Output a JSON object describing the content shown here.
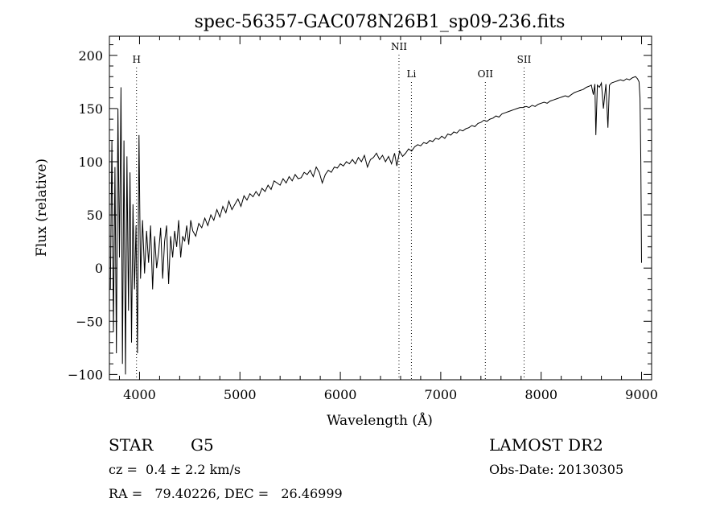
{
  "chart_data": {
    "type": "line",
    "title": "spec-56357-GAC078N26B1_sp09-236.fits",
    "xlabel": "Wavelength (Å)",
    "ylabel": "Flux (relative)",
    "xlim": [
      3700,
      9100
    ],
    "ylim": [
      -105,
      218
    ],
    "xticks": [
      4000,
      5000,
      6000,
      7000,
      8000,
      9000
    ],
    "yticks": [
      -100,
      -50,
      0,
      50,
      100,
      150,
      200
    ],
    "grid": false,
    "line_markers": [
      {
        "label": "H",
        "x": 3970,
        "level": 0
      },
      {
        "label": "NII",
        "x": 6584,
        "level": 1
      },
      {
        "label": "Li",
        "x": 6708,
        "level": 2
      },
      {
        "label": "OII",
        "x": 7444,
        "level": 2
      },
      {
        "label": "SII",
        "x": 7830,
        "level": 0
      }
    ],
    "series": [
      {
        "x": [
          3710,
          3725,
          3740,
          3755,
          3770,
          3785,
          3800,
          3815,
          3830,
          3845,
          3860,
          3875,
          3890,
          3905,
          3920,
          3935,
          3950,
          3965,
          3980,
          3995,
          4010,
          4030,
          4050,
          4070,
          4090,
          4110,
          4130,
          4150,
          4170,
          4190,
          4210,
          4230,
          4250,
          4270,
          4290,
          4310,
          4330,
          4350,
          4370,
          4390,
          4410,
          4430,
          4450,
          4470,
          4490,
          4510,
          4530,
          4560,
          4590,
          4620,
          4650,
          4680,
          4710,
          4740,
          4770,
          4800,
          4830,
          4860,
          4890,
          4920,
          4950,
          4980,
          5010,
          5040,
          5070,
          5100,
          5130,
          5160,
          5190,
          5220,
          5250,
          5280,
          5310,
          5340,
          5370,
          5400,
          5430,
          5460,
          5490,
          5520,
          5550,
          5580,
          5610,
          5640,
          5670,
          5700,
          5730,
          5760,
          5790,
          5820,
          5850,
          5880,
          5910,
          5940,
          5970,
          6000,
          6030,
          6060,
          6090,
          6120,
          6150,
          6180,
          6210,
          6240,
          6270,
          6300,
          6330,
          6360,
          6390,
          6420,
          6450,
          6480,
          6510,
          6540,
          6563,
          6590,
          6620,
          6650,
          6680,
          6710,
          6740,
          6770,
          6800,
          6830,
          6860,
          6890,
          6920,
          6950,
          6980,
          7010,
          7040,
          7070,
          7100,
          7130,
          7160,
          7190,
          7220,
          7250,
          7280,
          7310,
          7340,
          7370,
          7400,
          7430,
          7460,
          7490,
          7520,
          7550,
          7580,
          7610,
          7640,
          7670,
          7700,
          7730,
          7760,
          7790,
          7820,
          7850,
          7880,
          7910,
          7940,
          7970,
          8000,
          8030,
          8060,
          8090,
          8120,
          8150,
          8180,
          8210,
          8240,
          8270,
          8300,
          8330,
          8360,
          8390,
          8420,
          8450,
          8480,
          8500,
          8520,
          8535,
          8545,
          8560,
          8580,
          8600,
          8620,
          8645,
          8665,
          8680,
          8700,
          8730,
          8760,
          8790,
          8820,
          8850,
          8880,
          8910,
          8940,
          8960,
          8975,
          8985,
          8993,
          9000
        ],
        "y": [
          -20,
          120,
          -60,
          95,
          -80,
          150,
          10,
          170,
          -90,
          120,
          -100,
          105,
          -40,
          90,
          -70,
          60,
          -20,
          40,
          -80,
          125,
          -10,
          45,
          -5,
          35,
          5,
          40,
          -20,
          30,
          0,
          15,
          38,
          -10,
          25,
          40,
          -15,
          30,
          10,
          35,
          20,
          45,
          10,
          30,
          25,
          40,
          22,
          45,
          35,
          30,
          42,
          38,
          47,
          40,
          50,
          45,
          55,
          48,
          58,
          52,
          63,
          55,
          60,
          65,
          58,
          68,
          64,
          70,
          67,
          72,
          68,
          75,
          72,
          78,
          74,
          82,
          80,
          78,
          84,
          80,
          86,
          82,
          88,
          84,
          85,
          90,
          88,
          92,
          86,
          95,
          90,
          80,
          88,
          92,
          90,
          95,
          94,
          98,
          96,
          100,
          98,
          102,
          98,
          104,
          100,
          106,
          95,
          102,
          104,
          108,
          102,
          106,
          100,
          105,
          98,
          108,
          96,
          110,
          105,
          108,
          112,
          110,
          114,
          116,
          115,
          118,
          117,
          120,
          119,
          122,
          121,
          124,
          122,
          126,
          125,
          128,
          127,
          130,
          129,
          131,
          132,
          134,
          133,
          136,
          137,
          139,
          138,
          140,
          141,
          143,
          142,
          145,
          146,
          147,
          148,
          149,
          150,
          151,
          151,
          152,
          151,
          153,
          152,
          154,
          155,
          156,
          155,
          157,
          158,
          159,
          160,
          161,
          162,
          161,
          163,
          165,
          166,
          167,
          168,
          170,
          171,
          172,
          163,
          173,
          125,
          172,
          170,
          174,
          150,
          173,
          132,
          172,
          174,
          175,
          176,
          177,
          176,
          178,
          177,
          179,
          180,
          178,
          175,
          160,
          100,
          5
        ]
      }
    ]
  },
  "info": {
    "object_class": "STAR",
    "subclass": "G5",
    "survey": "LAMOST DR2",
    "redshift": "cz =  0.4 ± 2.2 km/s",
    "obs_date": "Obs-Date: 20130305",
    "coordinates": "RA =   79.40226, DEC =   26.46999"
  }
}
